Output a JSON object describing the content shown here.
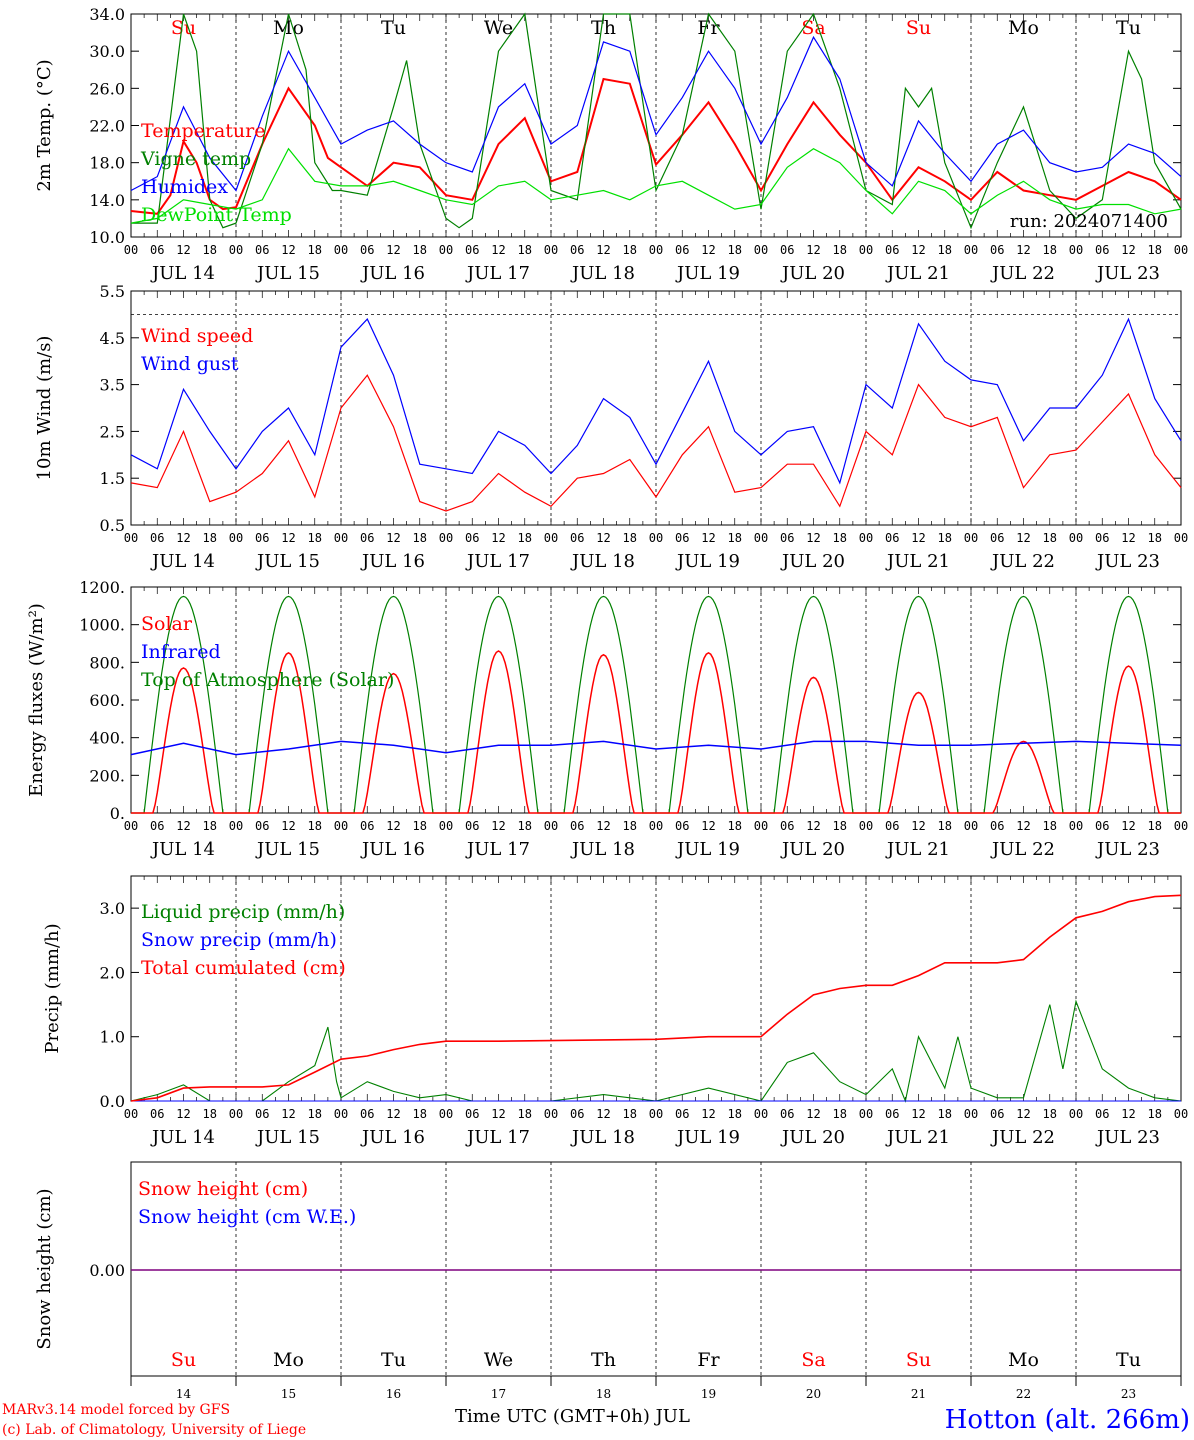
{
  "x_axis": {
    "hour_ticks": [
      "00",
      "06",
      "12",
      "18"
    ],
    "end_tick": "00",
    "dates": [
      "JUL 14",
      "JUL 15",
      "JUL 16",
      "JUL 17",
      "JUL 18",
      "JUL 19",
      "JUL 20",
      "JUL 21",
      "JUL 22",
      "JUL 23"
    ],
    "weekdays": [
      "Su",
      "Mo",
      "Tu",
      "We",
      "Th",
      "Fr",
      "Sa",
      "Su",
      "Mo",
      "Tu"
    ],
    "weekend_flags": [
      true,
      false,
      false,
      false,
      false,
      false,
      true,
      true,
      false,
      false
    ],
    "day_numbers": [
      "14",
      "15",
      "16",
      "17",
      "18",
      "19",
      "20",
      "21",
      "22",
      "23"
    ],
    "xlabel": "Time UTC (GMT+0h) JUL"
  },
  "colors": {
    "red": "#ff0000",
    "green": "#008000",
    "blue": "#0000ff",
    "light_green": "#00e000",
    "purple": "#7f007f"
  },
  "footer": {
    "credit_1": "MARv3.14 model forced by GFS",
    "credit_2": "(c) Lab. of Climatology, University of Liege",
    "station": "Hotton (alt. 266m)"
  },
  "chart_data": [
    {
      "id": "temperature",
      "type": "line",
      "ylabel": "2m Temp. (°C)",
      "ylim": [
        10,
        34
      ],
      "yticks": [
        "10.0",
        "14.0",
        "18.0",
        "22.0",
        "26.0",
        "30.0",
        "34.0"
      ],
      "annotation": "run: 2024071400",
      "x_unit": "hours since JUL 14 00 UTC",
      "series": [
        {
          "name": "Temperature",
          "color": "#ff0000",
          "x": [
            0,
            6,
            9,
            12,
            15,
            18,
            21,
            24,
            30,
            36,
            42,
            45,
            48,
            54,
            60,
            66,
            72,
            78,
            84,
            90,
            96,
            102,
            108,
            114,
            120,
            126,
            132,
            138,
            144,
            150,
            156,
            162,
            168,
            174,
            180,
            186,
            192,
            198,
            204,
            210,
            216,
            222,
            228,
            234,
            240
          ],
          "y": [
            12.8,
            12.5,
            14.5,
            20.3,
            18.0,
            14.0,
            13.0,
            13.2,
            20.0,
            26.0,
            22.0,
            18.5,
            17.5,
            15.5,
            18.0,
            17.5,
            14.5,
            14.0,
            20.0,
            22.8,
            16.0,
            17.0,
            27.0,
            26.5,
            17.8,
            21.0,
            24.5,
            20.0,
            15.0,
            20.0,
            24.5,
            21.0,
            18.0,
            14.0,
            17.5,
            16.0,
            14.0,
            17.0,
            15.0,
            14.5,
            14.0,
            15.5,
            17.0,
            16.0,
            14.0
          ]
        },
        {
          "name": "Vigne temp",
          "color": "#008000",
          "x": [
            0,
            6,
            12,
            15,
            18,
            21,
            24,
            30,
            36,
            40,
            42,
            46,
            48,
            54,
            60,
            63,
            66,
            72,
            75,
            78,
            84,
            90,
            96,
            102,
            108,
            114,
            120,
            126,
            132,
            138,
            144,
            150,
            156,
            162,
            168,
            174,
            177,
            180,
            183,
            186,
            192,
            198,
            204,
            210,
            216,
            222,
            228,
            231,
            234,
            240
          ],
          "y": [
            11.5,
            11.5,
            34.0,
            30.0,
            14.0,
            11.0,
            11.5,
            20.0,
            34.0,
            28.0,
            18.0,
            15.0,
            15.0,
            14.5,
            24.0,
            29.0,
            20.0,
            12.0,
            11.0,
            12.0,
            30.0,
            34.0,
            15.0,
            14.0,
            34.0,
            34.0,
            15.0,
            21.0,
            34.0,
            30.0,
            13.0,
            30.0,
            34.0,
            26.0,
            15.0,
            13.5,
            26.0,
            24.0,
            26.0,
            18.0,
            11.0,
            18.0,
            24.0,
            15.0,
            12.0,
            14.0,
            30.0,
            27.0,
            18.0,
            13.0
          ]
        },
        {
          "name": "Humidex",
          "color": "#0000ff",
          "x": [
            0,
            6,
            12,
            18,
            24,
            30,
            36,
            42,
            48,
            54,
            60,
            66,
            72,
            78,
            84,
            90,
            96,
            102,
            108,
            114,
            120,
            126,
            132,
            138,
            144,
            150,
            156,
            162,
            168,
            174,
            180,
            186,
            192,
            198,
            204,
            210,
            216,
            222,
            228,
            234,
            240
          ],
          "y": [
            15.0,
            16.5,
            24.0,
            18.5,
            15.0,
            23.0,
            30.0,
            25.0,
            20.0,
            21.5,
            22.5,
            20.0,
            18.0,
            17.0,
            24.0,
            26.5,
            20.0,
            22.0,
            31.0,
            30.0,
            21.0,
            25.0,
            30.0,
            26.0,
            20.0,
            25.0,
            31.5,
            27.0,
            18.0,
            15.5,
            22.5,
            19.0,
            16.0,
            20.0,
            21.5,
            18.0,
            17.0,
            17.5,
            20.0,
            19.0,
            16.5
          ]
        },
        {
          "name": "DewPoint Temp",
          "color": "#00e000",
          "x": [
            0,
            6,
            12,
            18,
            24,
            30,
            36,
            42,
            48,
            54,
            60,
            66,
            72,
            78,
            84,
            90,
            96,
            102,
            108,
            114,
            120,
            126,
            132,
            138,
            144,
            150,
            156,
            162,
            168,
            174,
            180,
            186,
            192,
            198,
            204,
            210,
            216,
            222,
            228,
            234,
            240
          ],
          "y": [
            11.5,
            12.0,
            14.0,
            13.5,
            13.0,
            14.0,
            19.5,
            16.0,
            15.5,
            15.5,
            16.0,
            15.0,
            14.0,
            13.5,
            15.5,
            16.0,
            14.0,
            14.5,
            15.0,
            14.0,
            15.5,
            16.0,
            14.5,
            13.0,
            13.5,
            17.5,
            19.5,
            18.0,
            15.0,
            12.5,
            16.0,
            15.0,
            12.5,
            14.5,
            16.0,
            14.0,
            13.0,
            13.5,
            13.5,
            12.5,
            13.0
          ]
        }
      ]
    },
    {
      "id": "wind",
      "type": "line",
      "ylabel": "10m Wind (m/s)",
      "ylim": [
        0.5,
        5.5
      ],
      "yticks": [
        "0.5",
        "1.5",
        "2.5",
        "3.5",
        "4.5",
        "5.5"
      ],
      "reference_line": 5.0,
      "x_unit": "hours since JUL 14 00 UTC",
      "series": [
        {
          "name": "Wind speed",
          "color": "#ff0000",
          "x": [
            0,
            6,
            12,
            18,
            24,
            30,
            36,
            42,
            48,
            54,
            60,
            66,
            72,
            78,
            84,
            90,
            96,
            102,
            108,
            114,
            120,
            126,
            132,
            138,
            144,
            150,
            156,
            162,
            168,
            174,
            180,
            186,
            192,
            198,
            204,
            210,
            216,
            222,
            228,
            234,
            240
          ],
          "y": [
            1.4,
            1.3,
            2.5,
            1.0,
            1.2,
            1.6,
            2.3,
            1.1,
            3.0,
            3.7,
            2.6,
            1.0,
            0.8,
            1.0,
            1.6,
            1.2,
            0.9,
            1.5,
            1.6,
            1.9,
            1.1,
            2.0,
            2.6,
            1.2,
            1.3,
            1.8,
            1.8,
            0.9,
            2.5,
            2.0,
            3.5,
            2.8,
            2.6,
            2.8,
            1.3,
            2.0,
            2.1,
            2.7,
            3.3,
            2.0,
            1.3
          ]
        },
        {
          "name": "Wind gust",
          "color": "#0000ff",
          "x": [
            0,
            6,
            12,
            18,
            24,
            30,
            36,
            42,
            48,
            54,
            60,
            66,
            72,
            78,
            84,
            90,
            96,
            102,
            108,
            114,
            120,
            126,
            132,
            138,
            144,
            150,
            156,
            162,
            168,
            174,
            180,
            186,
            192,
            198,
            204,
            210,
            216,
            222,
            228,
            234,
            240
          ],
          "y": [
            2.0,
            1.7,
            3.4,
            2.5,
            1.7,
            2.5,
            3.0,
            2.0,
            4.3,
            4.9,
            3.7,
            1.8,
            1.7,
            1.6,
            2.5,
            2.2,
            1.6,
            2.2,
            3.2,
            2.8,
            1.8,
            2.9,
            4.0,
            2.5,
            2.0,
            2.5,
            2.6,
            1.4,
            3.5,
            3.0,
            4.8,
            4.0,
            3.6,
            3.5,
            2.3,
            3.0,
            3.0,
            3.7,
            4.9,
            3.2,
            2.3
          ]
        }
      ]
    },
    {
      "id": "energy",
      "type": "line",
      "ylabel": "Energy fluxes (W/m²)",
      "ylim": [
        0,
        1200
      ],
      "yticks": [
        "0.",
        "200.",
        "400.",
        "600.",
        "800.",
        "1000.",
        "1200."
      ],
      "x_unit": "hours since JUL 14 00 UTC",
      "series": [
        {
          "name": "Solar",
          "color": "#ff0000",
          "day_peaks": [
            770,
            850,
            740,
            860,
            840,
            850,
            720,
            640,
            380,
            780
          ]
        },
        {
          "name": "Infrared",
          "color": "#0000ff",
          "x": [
            0,
            12,
            24,
            36,
            48,
            60,
            72,
            84,
            96,
            108,
            120,
            132,
            144,
            156,
            168,
            180,
            192,
            204,
            216,
            228,
            240
          ],
          "y": [
            310,
            370,
            310,
            340,
            380,
            360,
            320,
            360,
            360,
            380,
            340,
            360,
            340,
            380,
            380,
            360,
            360,
            370,
            380,
            370,
            360
          ]
        },
        {
          "name": "Top of Atmosphere (Solar)",
          "color": "#008000",
          "day_peak": 1150
        }
      ]
    },
    {
      "id": "precip",
      "type": "line",
      "ylabel": "Precip (mm/h)",
      "ylim": [
        0,
        3.5
      ],
      "yticks": [
        "0.0",
        "1.0",
        "2.0",
        "3.0"
      ],
      "x_unit": "hours since JUL 14 00 UTC",
      "series": [
        {
          "name": "Liquid precip (mm/h)",
          "color": "#008000",
          "x": [
            0,
            6,
            12,
            18,
            24,
            30,
            36,
            42,
            45,
            47,
            48,
            54,
            60,
            66,
            72,
            78,
            84,
            90,
            96,
            108,
            120,
            132,
            144,
            150,
            156,
            162,
            168,
            174,
            177,
            180,
            186,
            189,
            192,
            198,
            204,
            210,
            213,
            216,
            222,
            228,
            234,
            240
          ],
          "y": [
            0,
            0.1,
            0.25,
            0,
            0,
            0,
            0.3,
            0.55,
            1.15,
            0.3,
            0.05,
            0.3,
            0.15,
            0.05,
            0.1,
            0,
            0,
            0,
            0,
            0.1,
            0,
            0.2,
            0,
            0.6,
            0.75,
            0.3,
            0.1,
            0.5,
            0.0,
            1.0,
            0.2,
            1.0,
            0.2,
            0.05,
            0.05,
            1.5,
            0.5,
            1.55,
            0.5,
            0.2,
            0.05,
            0
          ]
        },
        {
          "name": "Snow precip (mm/h)",
          "color": "#0000ff",
          "x": [
            0,
            240
          ],
          "y": [
            0,
            0
          ]
        },
        {
          "name": "Total cumulated (cm)",
          "color": "#ff0000",
          "x": [
            0,
            6,
            12,
            18,
            24,
            30,
            36,
            42,
            48,
            54,
            60,
            66,
            72,
            84,
            96,
            108,
            120,
            132,
            138,
            144,
            150,
            156,
            162,
            168,
            174,
            180,
            186,
            192,
            198,
            204,
            210,
            216,
            222,
            228,
            234,
            240
          ],
          "y": [
            0,
            0.05,
            0.2,
            0.22,
            0.22,
            0.22,
            0.25,
            0.45,
            0.65,
            0.7,
            0.8,
            0.88,
            0.93,
            0.93,
            0.94,
            0.95,
            0.96,
            1.0,
            1.0,
            1.0,
            1.35,
            1.65,
            1.75,
            1.8,
            1.8,
            1.95,
            2.15,
            2.15,
            2.15,
            2.2,
            2.55,
            2.85,
            2.95,
            3.1,
            3.18,
            3.2
          ]
        }
      ]
    },
    {
      "id": "snow",
      "type": "line",
      "ylabel": "Snow height (cm)",
      "yticks": [
        "0.00"
      ],
      "series": [
        {
          "name": "Snow height (cm)",
          "color": "#ff0000",
          "x": [
            0,
            240
          ],
          "y": [
            0,
            0
          ]
        },
        {
          "name": "Snow height (cm W.E.)",
          "color": "#0000ff",
          "x": [
            0,
            240
          ],
          "y": [
            0,
            0
          ]
        }
      ]
    }
  ]
}
